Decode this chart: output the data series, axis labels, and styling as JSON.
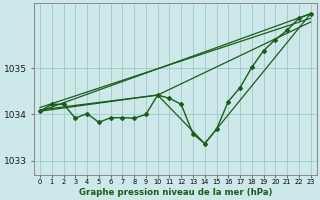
{
  "bg_color": "#cde8e8",
  "plot_bg_color": "#cde8e8",
  "grid_color": "#a0c8c8",
  "line_color": "#1a5c1a",
  "xlabel": "Graphe pression niveau de la mer (hPa)",
  "xlim": [
    -0.5,
    23.5
  ],
  "ylim": [
    1032.7,
    1036.4
  ],
  "yticks": [
    1033,
    1034,
    1035
  ],
  "xticks": [
    0,
    1,
    2,
    3,
    4,
    5,
    6,
    7,
    8,
    9,
    10,
    11,
    12,
    13,
    14,
    15,
    16,
    17,
    18,
    19,
    20,
    21,
    22,
    23
  ],
  "zigzag_x": [
    0,
    1,
    2,
    3,
    4,
    5,
    6,
    7,
    8,
    9,
    10,
    11,
    12,
    13,
    14,
    15,
    16,
    17,
    18,
    19,
    20,
    21,
    22,
    23
  ],
  "zigzag_y": [
    1034.07,
    1034.22,
    1034.22,
    1033.92,
    1034.02,
    1033.83,
    1033.93,
    1033.93,
    1033.92,
    1034.0,
    1034.42,
    1034.35,
    1034.22,
    1033.58,
    1033.37,
    1033.68,
    1034.28,
    1034.58,
    1035.02,
    1035.38,
    1035.62,
    1035.82,
    1036.08,
    1036.18
  ],
  "line1_x": [
    0,
    23
  ],
  "line1_y": [
    1034.07,
    1036.18
  ],
  "line2_x": [
    0,
    23
  ],
  "line2_y": [
    1034.15,
    1036.08
  ],
  "line3_x": [
    0,
    10,
    23
  ],
  "line3_y": [
    1034.1,
    1034.42,
    1036.0
  ],
  "line4_x": [
    0,
    10,
    14,
    23
  ],
  "line4_y": [
    1034.07,
    1034.42,
    1033.37,
    1036.18
  ]
}
